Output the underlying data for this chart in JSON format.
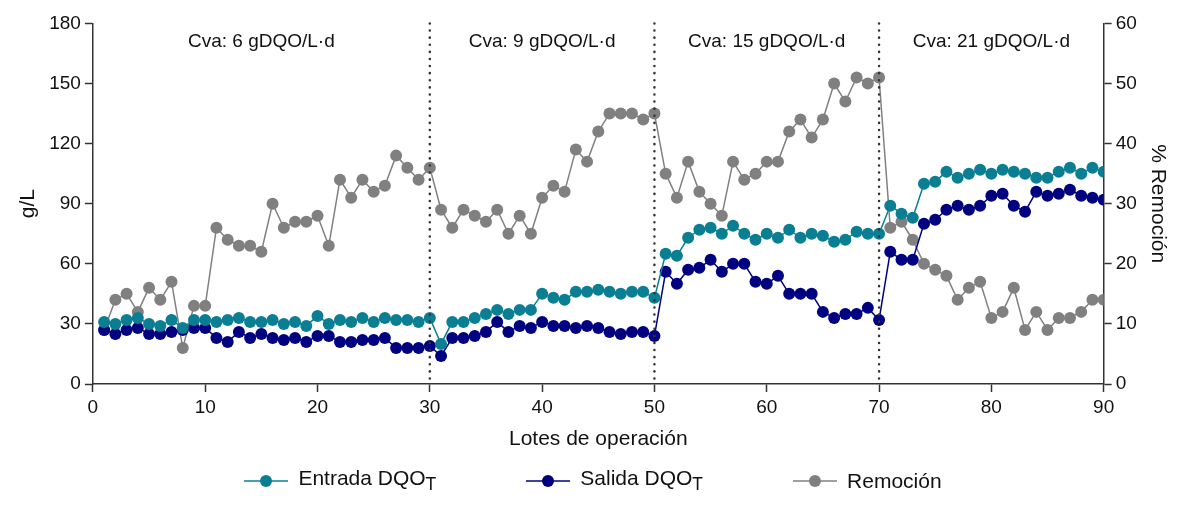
{
  "chart_data": {
    "type": "line",
    "xlabel": "Lotes de operación",
    "ylabel": "g/L",
    "y2label": "% Remoción",
    "x": [
      1,
      2,
      3,
      4,
      5,
      6,
      7,
      8,
      9,
      10,
      11,
      12,
      13,
      14,
      15,
      16,
      17,
      18,
      19,
      20,
      21,
      22,
      23,
      24,
      25,
      26,
      27,
      28,
      29,
      30,
      31,
      32,
      33,
      34,
      35,
      36,
      37,
      38,
      39,
      40,
      41,
      42,
      43,
      44,
      45,
      46,
      47,
      48,
      49,
      50,
      51,
      52,
      53,
      54,
      55,
      56,
      57,
      58,
      59,
      60,
      61,
      62,
      63,
      64,
      65,
      66,
      67,
      68,
      69,
      70,
      71,
      72,
      73,
      74,
      75,
      76,
      77,
      78,
      79,
      80,
      81,
      82,
      83,
      84,
      85,
      86,
      87,
      88,
      89,
      90
    ],
    "series": [
      {
        "name": "Entrada DQO$_{T}$",
        "color": "#0a7f94",
        "values": [
          31,
          30,
          32,
          33,
          30,
          29,
          32,
          28,
          32,
          32,
          31,
          32,
          33,
          31,
          31,
          32,
          30,
          31,
          29,
          34,
          30,
          32,
          31,
          33,
          31,
          33,
          32,
          32,
          31,
          33,
          20,
          31,
          31,
          33,
          35,
          37,
          35,
          37,
          37,
          45,
          43,
          42,
          46,
          46,
          47,
          46,
          45,
          46,
          46,
          43,
          65,
          64,
          73,
          77,
          78,
          75,
          79,
          75,
          72,
          75,
          73,
          77,
          73,
          75,
          74,
          71,
          72,
          76,
          75,
          75,
          89,
          85,
          83,
          100,
          101,
          106,
          103,
          105,
          107,
          105,
          107,
          106,
          105,
          103,
          103,
          106,
          108,
          105,
          108,
          106
        ]
      },
      {
        "name": "Salida DQO$_{T}$",
        "color": "#000080",
        "values": [
          27,
          25,
          27,
          28,
          25,
          25,
          26,
          27,
          28,
          28,
          23,
          21,
          26,
          23,
          25,
          23,
          22,
          23,
          21,
          24,
          24,
          21,
          21,
          22,
          22,
          23,
          18,
          18,
          18,
          19,
          14,
          23,
          23,
          24,
          26,
          31,
          26,
          29,
          28,
          31,
          29,
          29,
          28,
          29,
          28,
          26,
          25,
          26,
          26,
          24,
          56,
          50,
          57,
          58,
          62,
          56,
          60,
          60,
          51,
          50,
          54,
          45,
          45,
          45,
          36,
          33,
          35,
          35,
          38,
          32,
          66,
          62,
          62,
          80,
          82,
          87,
          89,
          87,
          89,
          94,
          95,
          89,
          86,
          96,
          94,
          95,
          97,
          94,
          93,
          92
        ]
      },
      {
        "name": "Remoción",
        "color": "#808080",
        "axis": "y2",
        "values": [
          9,
          14,
          15,
          12,
          16,
          14,
          17,
          6,
          13,
          13,
          26,
          24,
          23,
          23,
          22,
          30,
          26,
          27,
          27,
          28,
          23,
          34,
          31,
          34,
          32,
          33,
          38,
          36,
          34,
          36,
          29,
          26,
          29,
          28,
          27,
          29,
          25,
          28,
          25,
          31,
          33,
          32,
          39,
          37,
          42,
          45,
          45,
          45,
          44,
          45,
          35,
          31,
          37,
          32,
          30,
          28,
          37,
          34,
          35,
          37,
          37,
          42,
          44,
          41,
          44,
          50,
          47,
          51,
          50,
          51,
          26,
          27,
          24,
          20,
          19,
          18,
          14,
          16,
          17,
          11,
          12,
          16,
          9,
          12,
          9,
          11,
          11,
          12,
          14,
          14
        ]
      }
    ],
    "xlim": [
      0,
      90
    ],
    "xticks": [
      0,
      10,
      20,
      30,
      40,
      50,
      60,
      70,
      80,
      90
    ],
    "ylim": [
      0,
      180
    ],
    "yticks": [
      0,
      30,
      60,
      90,
      120,
      150,
      180
    ],
    "y2lim": [
      0,
      60
    ],
    "y2ticks": [
      0,
      10,
      20,
      30,
      40,
      50,
      60
    ],
    "ref_lines": [
      {
        "axis": "x",
        "value": 30,
        "color": "#333333",
        "line_style": "dotted"
      },
      {
        "axis": "x",
        "value": 50,
        "color": "#333333",
        "line_style": "dotted"
      },
      {
        "axis": "x",
        "value": 70,
        "color": "#333333",
        "line_style": "dotted"
      }
    ],
    "annotations": [
      "Cva: 6 gDQO/L·d",
      "Cva: 9 gDQO/L·d",
      "Cva: 15 gDQO/L·d",
      "Cva: 21 gDQO/L·d"
    ],
    "marker": "circle",
    "grid": false,
    "legend": "bottom"
  }
}
